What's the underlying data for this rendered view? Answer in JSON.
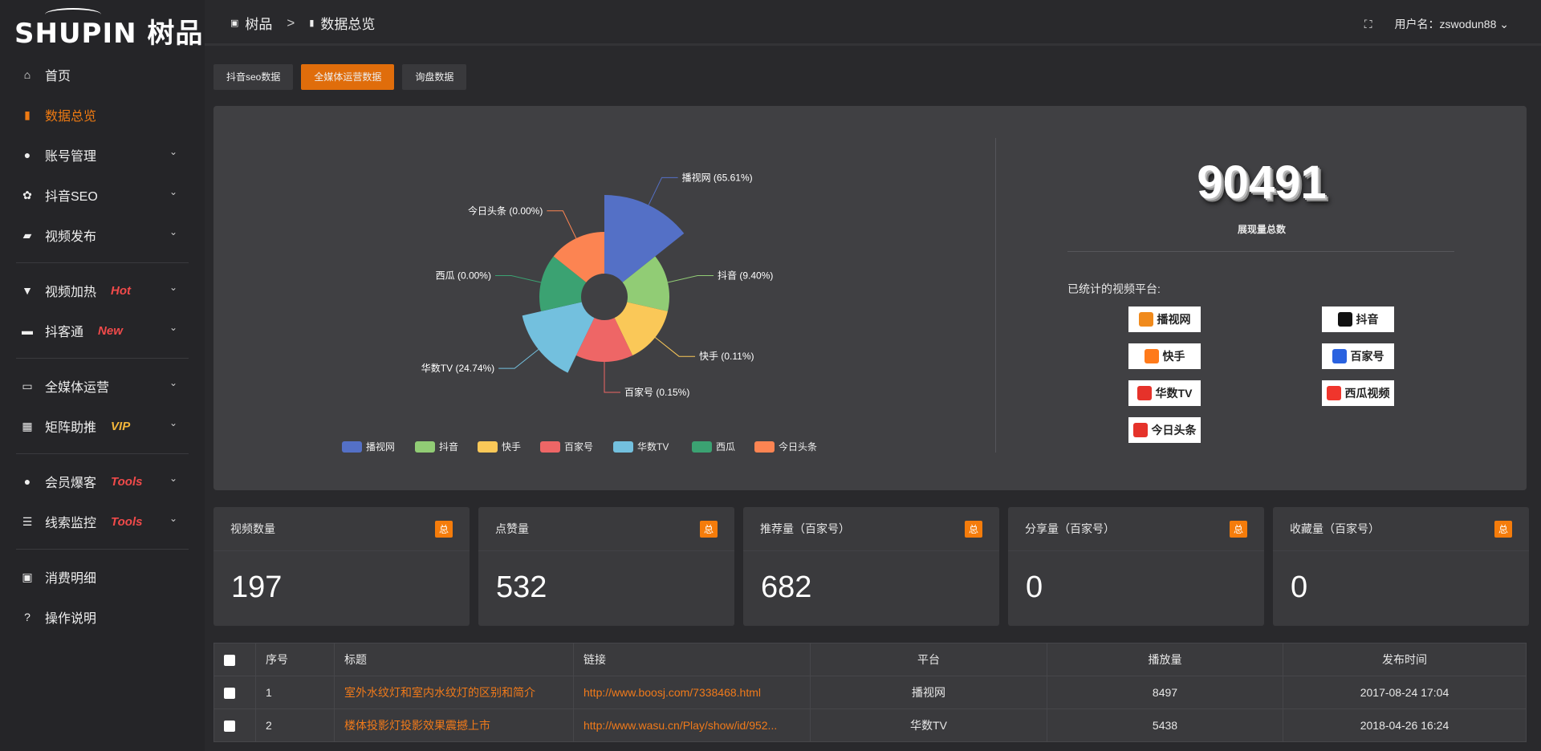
{
  "brand": {
    "logo_text": "SHUPIN 树品"
  },
  "sidebar": {
    "items": [
      {
        "label": "首页",
        "icon": "home-icon"
      },
      {
        "label": "数据总览",
        "icon": "bar-chart-icon",
        "active": true
      },
      {
        "label": "账号管理",
        "icon": "user-icon",
        "expandable": true
      },
      {
        "label": "抖音SEO",
        "icon": "gear-icon",
        "expandable": true
      },
      {
        "label": "视频发布",
        "icon": "camera-icon",
        "expandable": true
      },
      {
        "label": "视频加热",
        "icon": "flame-icon",
        "expandable": true,
        "tag": "Hot"
      },
      {
        "label": "抖客通",
        "icon": "chat-icon",
        "expandable": true,
        "tag": "New"
      },
      {
        "label": "全媒体运营",
        "icon": "monitor-icon",
        "expandable": true
      },
      {
        "label": "矩阵助推",
        "icon": "grid-icon",
        "expandable": true,
        "tag": "VIP"
      },
      {
        "label": "会员爆客",
        "icon": "user-icon",
        "expandable": true,
        "tag": "Tools"
      },
      {
        "label": "线索监控",
        "icon": "sliders-icon",
        "expandable": true,
        "tag": "Tools"
      },
      {
        "label": "消费明细",
        "icon": "wallet-icon"
      },
      {
        "label": "操作说明",
        "icon": "help-icon"
      }
    ]
  },
  "header": {
    "breadcrumb": [
      "树品",
      "数据总览"
    ],
    "user_label": "用户名：zswodun88"
  },
  "tabs": [
    "抖音seo数据",
    "全媒体运营数据",
    "询盘数据"
  ],
  "overview": {
    "total": "90491",
    "total_label": "展现量总数",
    "platforms_title": "已统计的视频平台:",
    "platform_logos": [
      {
        "name": "播视网",
        "color": "#f08a1c"
      },
      {
        "name": "抖音",
        "color": "#111"
      },
      {
        "name": "快手",
        "color": "#ff7a1a"
      },
      {
        "name": "百家号",
        "color": "#2a62e0"
      },
      {
        "name": "华数TV",
        "color": "#e6322a"
      },
      {
        "name": "西瓜视频",
        "color": "#f0352c"
      },
      {
        "name": "今日头条",
        "color": "#e5322a"
      }
    ]
  },
  "chart_data": {
    "type": "pie",
    "rose": true,
    "categories": [
      "播视网",
      "抖音",
      "快手",
      "百家号",
      "华数TV",
      "西瓜",
      "今日头条"
    ],
    "values": [
      65.61,
      9.4,
      0.11,
      0.15,
      24.74,
      0.0,
      0.0
    ],
    "labels": [
      "播视网 (65.61%)",
      "抖音 (9.40%)",
      "快手 (0.11%)",
      "百家号 (0.15%)",
      "华数TV (24.74%)",
      "西瓜 (0.00%)",
      "今日头条 (0.00%)"
    ],
    "colors": [
      "#5470c6",
      "#91cc75",
      "#fac858",
      "#ee6666",
      "#73c0de",
      "#3ba272",
      "#fc8452"
    ],
    "legend": "bottom"
  },
  "cards": [
    {
      "title": "视频数量",
      "badge": "总",
      "value": "197"
    },
    {
      "title": "点赞量",
      "badge": "总",
      "value": "532"
    },
    {
      "title": "推荐量（百家号）",
      "badge": "总",
      "value": "682"
    },
    {
      "title": "分享量（百家号）",
      "badge": "总",
      "value": "0"
    },
    {
      "title": "收藏量（百家号）",
      "badge": "总",
      "value": "0"
    }
  ],
  "table": {
    "headers": [
      "序号",
      "标题",
      "链接",
      "平台",
      "播放量",
      "发布时间"
    ],
    "rows": [
      [
        "1",
        "室外水纹灯和室内水纹灯的区别和简介",
        "http://www.boosj.com/7338468.html",
        "播视网",
        "8497",
        "2017-08-24 17:04"
      ],
      [
        "2",
        "楼体投影灯投影效果震撼上市",
        "http://www.wasu.cn/Play/show/id/952...",
        "华数TV",
        "5438",
        "2018-04-26 16:24"
      ]
    ]
  }
}
